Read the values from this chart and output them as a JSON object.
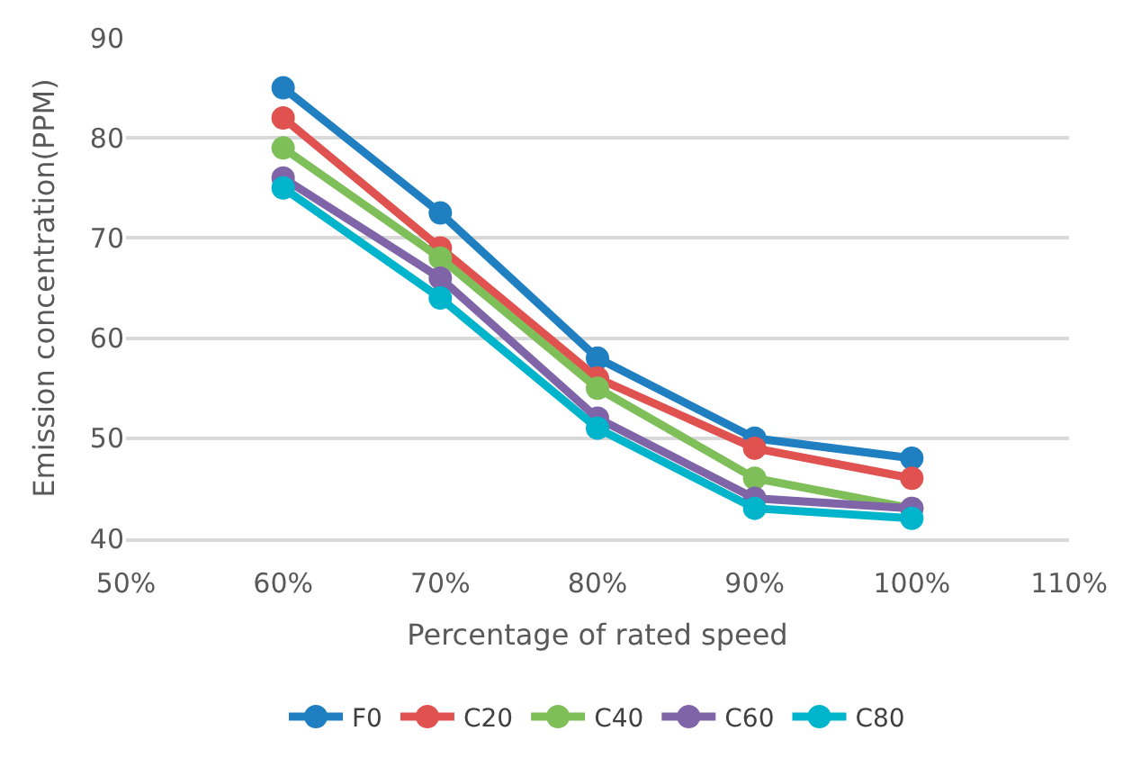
{
  "chart_data": {
    "type": "line",
    "xlabel": "Percentage of rated speed",
    "ylabel": "Emission concentration(PPM)",
    "x": [
      0.6,
      0.7,
      0.8,
      0.9,
      1.0
    ],
    "series": [
      {
        "name": "F0",
        "color": "#1f7fc1",
        "values": [
          85,
          72.5,
          58,
          50,
          48
        ]
      },
      {
        "name": "C20",
        "color": "#e0524f",
        "values": [
          82,
          69,
          56,
          49,
          46
        ]
      },
      {
        "name": "C40",
        "color": "#7fbf5a",
        "values": [
          79,
          68,
          55,
          46,
          43
        ]
      },
      {
        "name": "C60",
        "color": "#8064a8",
        "values": [
          76,
          66,
          52,
          44,
          43
        ]
      },
      {
        "name": "C80",
        "color": "#00b4cc",
        "values": [
          75,
          64,
          51,
          43,
          42
        ]
      }
    ],
    "xlim": [
      0.5,
      1.1
    ],
    "xticks": [
      {
        "value": 0.5,
        "label": "50%"
      },
      {
        "value": 0.6,
        "label": "60%"
      },
      {
        "value": 0.7,
        "label": "70%"
      },
      {
        "value": 0.8,
        "label": "80%"
      },
      {
        "value": 0.9,
        "label": "90%"
      },
      {
        "value": 1.0,
        "label": "100%"
      },
      {
        "value": 1.1,
        "label": "110%"
      }
    ],
    "ylim": [
      40,
      90
    ],
    "yticks": [
      40,
      50,
      60,
      70,
      80,
      90
    ],
    "grid": "y",
    "legend": "bottom",
    "marker": "circle",
    "line_style": "solid"
  }
}
